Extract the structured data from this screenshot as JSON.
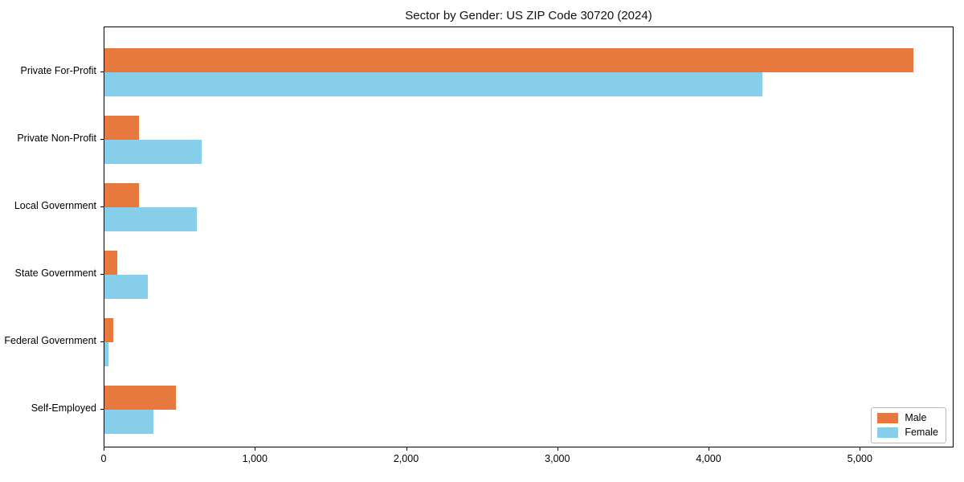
{
  "chart_data": {
    "type": "bar",
    "orientation": "horizontal",
    "title": "Sector by Gender: US ZIP Code 30720 (2024)",
    "categories": [
      "Private For-Profit",
      "Private Non-Profit",
      "Local Government",
      "State Government",
      "Federal Government",
      "Self-Employed"
    ],
    "series": [
      {
        "name": "Male",
        "color": "#E8793E",
        "values": [
          5350,
          230,
          230,
          85,
          60,
          475
        ]
      },
      {
        "name": "Female",
        "color": "#87CEEB",
        "values": [
          4350,
          640,
          610,
          285,
          25,
          325
        ]
      }
    ],
    "xlabel": "",
    "ylabel": "",
    "xlim": [
      0,
      5620
    ],
    "xticks": {
      "values": [
        0,
        1000,
        2000,
        3000,
        4000,
        5000
      ],
      "labels": [
        "0",
        "1,000",
        "2,000",
        "3,000",
        "4,000",
        "5,000"
      ]
    },
    "legend": {
      "position": "lower right",
      "entries": [
        "Male",
        "Female"
      ]
    },
    "grid": false,
    "background": "#ffffff",
    "spine_color": "#000000"
  }
}
